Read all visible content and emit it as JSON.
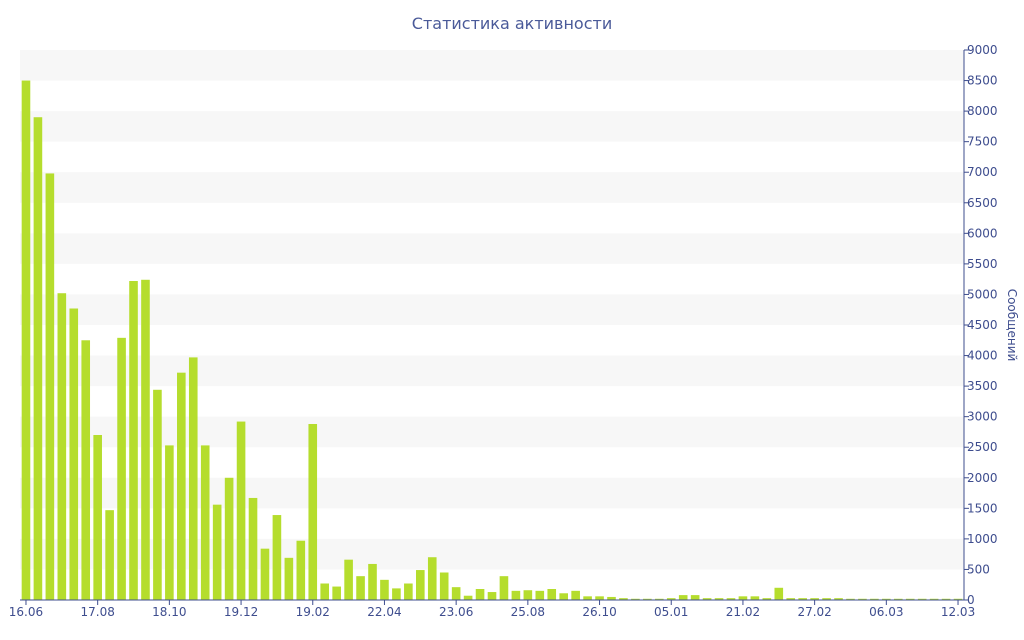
{
  "chart_data": {
    "type": "bar",
    "title": "Статистика активности",
    "xlabel": "",
    "ylabel": "Сообщений",
    "ylim": [
      0,
      9000
    ],
    "y_ticks": [
      0,
      500,
      1000,
      1500,
      2000,
      2500,
      3000,
      3500,
      4000,
      4500,
      5000,
      5500,
      6000,
      6500,
      7000,
      7500,
      8000,
      8500,
      9000
    ],
    "x_tick_labels": [
      {
        "label": "16.06",
        "index": 0
      },
      {
        "label": "17.08",
        "index": 6
      },
      {
        "label": "18.10",
        "index": 12
      },
      {
        "label": "19.12",
        "index": 18
      },
      {
        "label": "19.02",
        "index": 24
      },
      {
        "label": "22.04",
        "index": 30
      },
      {
        "label": "23.06",
        "index": 36
      },
      {
        "label": "25.08",
        "index": 42
      },
      {
        "label": "26.10",
        "index": 48
      },
      {
        "label": "05.01",
        "index": 54
      },
      {
        "label": "21.02",
        "index": 60
      },
      {
        "label": "27.02",
        "index": 66
      },
      {
        "label": "06.03",
        "index": 72
      },
      {
        "label": "12.03",
        "index": 78
      }
    ],
    "values": [
      8500,
      7900,
      6980,
      5020,
      4770,
      4250,
      2700,
      1470,
      4290,
      5220,
      5240,
      3440,
      2530,
      3720,
      3970,
      2530,
      1560,
      2000,
      2920,
      1670,
      840,
      1390,
      690,
      970,
      2880,
      270,
      220,
      660,
      390,
      590,
      330,
      190,
      270,
      490,
      700,
      450,
      210,
      70,
      180,
      130,
      390,
      150,
      160,
      150,
      180,
      110,
      150,
      60,
      60,
      50,
      30,
      20,
      20,
      20,
      30,
      80,
      80,
      30,
      30,
      30,
      60,
      60,
      30,
      200,
      30,
      30,
      30,
      30,
      30,
      20,
      20,
      20,
      20,
      20,
      20,
      20,
      20,
      20,
      20
    ],
    "bar_color": "#b5dd2d",
    "band_color": "#f7f7f7",
    "axis_color": "#3e4d8e",
    "grid": "alternating horizontal bands",
    "y_axis_side": "right"
  }
}
